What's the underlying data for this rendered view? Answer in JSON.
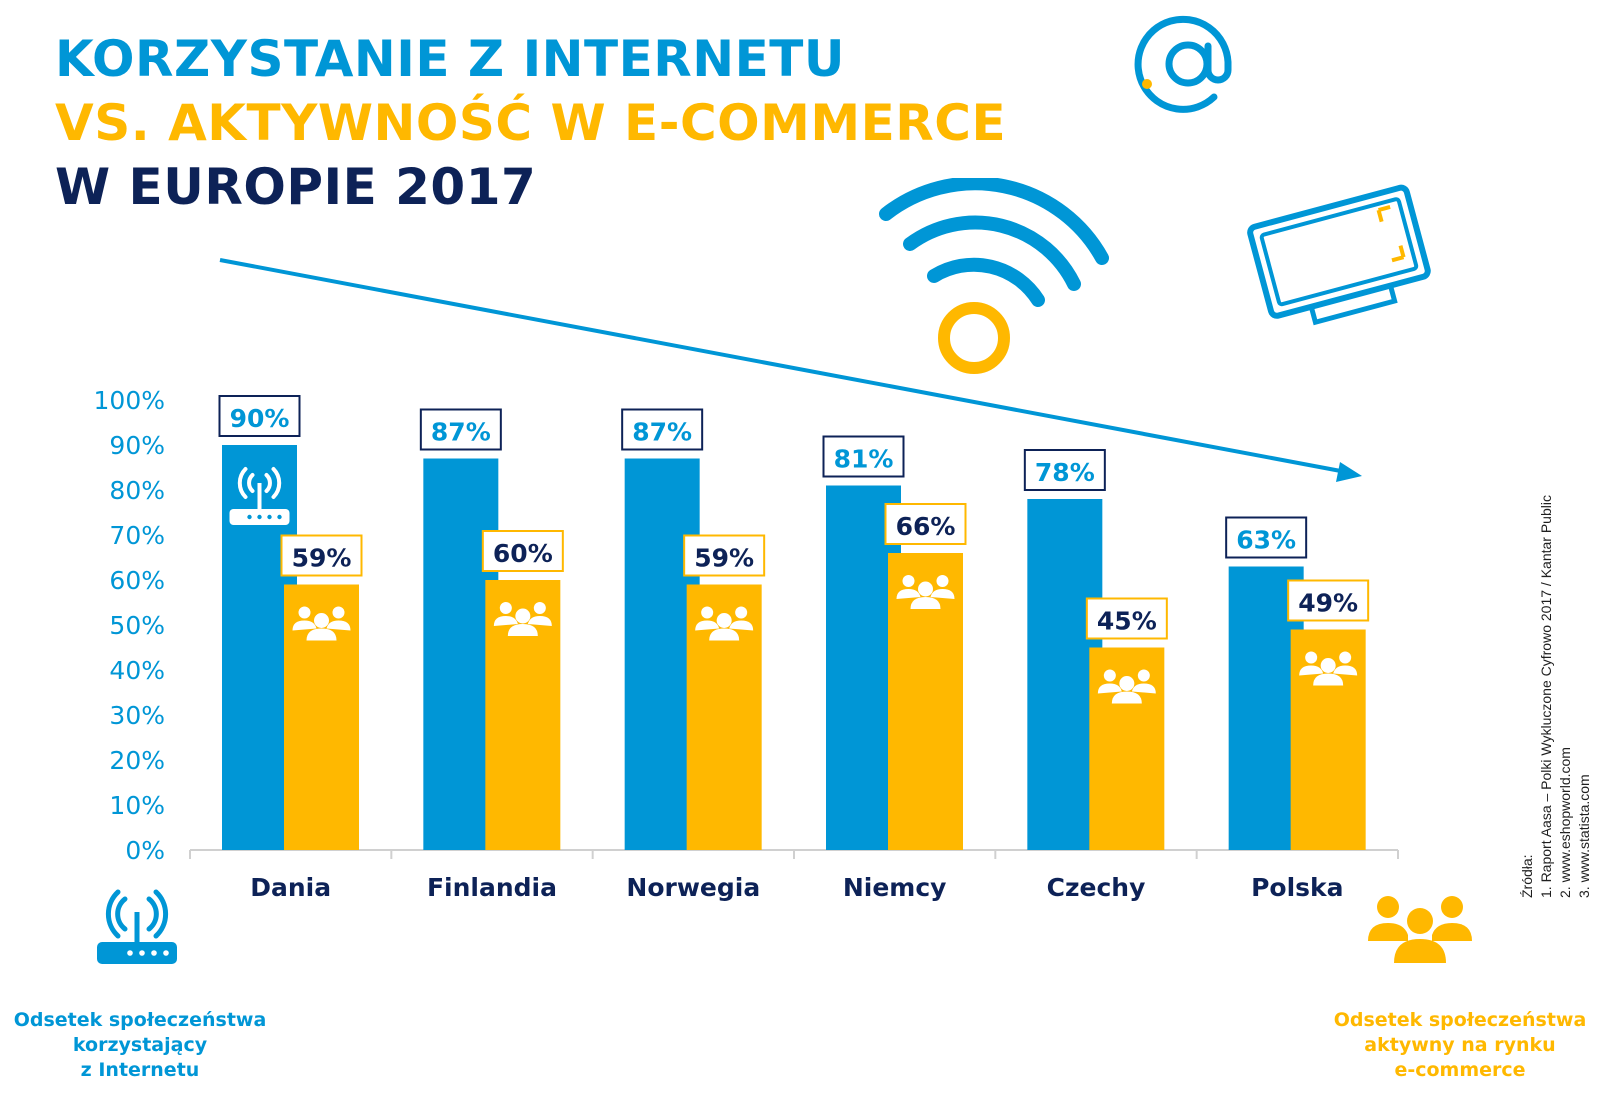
{
  "title": {
    "line1": "KORZYSTANIE Z INTERNETU",
    "line2": "VS. AKTYWNOŚĆ W E-COMMERCE",
    "line3": "W EUROPIE 2017"
  },
  "colors": {
    "blue": "#0096d6",
    "yellow": "#ffb800",
    "navy": "#0d2257",
    "grid": "#d0d0d0"
  },
  "legend": {
    "internet": [
      "Odsetek społeczeństwa",
      "korzystający",
      "z Internetu"
    ],
    "ecommerce": [
      "Odsetek społeczeństwa",
      "aktywny na rynku",
      "e-commerce"
    ]
  },
  "sources": {
    "heading": "Źródła:",
    "items": [
      "1. Raport Aasa – Polki Wykluczone Cyfrowo 2017 / Kantar Public",
      "2. www.eshopworld.com",
      "3. www.statista.com"
    ]
  },
  "icons": [
    "at-sign-icon",
    "wifi-icon",
    "laptop-icon",
    "router-icon",
    "people-group-icon",
    "trend-arrow-icon"
  ],
  "chart_data": {
    "type": "bar",
    "categories": [
      "Dania",
      "Finlandia",
      "Norwegia",
      "Niemcy",
      "Czechy",
      "Polska"
    ],
    "series": [
      {
        "name": "Odsetek społeczeństwa korzystający z Internetu",
        "color": "#0096d6",
        "values": [
          90,
          87,
          87,
          81,
          78,
          63
        ]
      },
      {
        "name": "Odsetek społeczeństwa aktywny na rynku e-commerce",
        "color": "#ffb800",
        "values": [
          59,
          60,
          59,
          66,
          45,
          49
        ]
      }
    ],
    "data_labels": [
      [
        "90%",
        "87%",
        "87%",
        "81%",
        "78%",
        "63%"
      ],
      [
        "59%",
        "60%",
        "59%",
        "66%",
        "45%",
        "49%"
      ]
    ],
    "y_ticks": [
      "0%",
      "10%",
      "20%",
      "30%",
      "40%",
      "50%",
      "60%",
      "70%",
      "80%",
      "90%",
      "100%"
    ],
    "ylim": [
      0,
      100
    ],
    "grid": false,
    "legend_position": "bottom-corners",
    "xlabel": "",
    "ylabel": ""
  }
}
